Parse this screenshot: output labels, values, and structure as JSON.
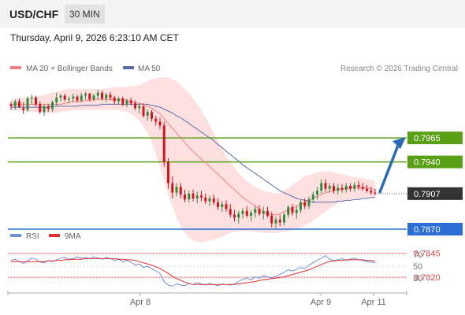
{
  "header": {
    "pair": "USD/CHF",
    "timeframe_tab": "30 MIN"
  },
  "datetime": "Thursday, April 9, 2026 6:23:10 AM CET",
  "colors": {
    "candle_up": "#2e8b3e",
    "candle_down": "#d3141d",
    "ma20": "#f08080",
    "bollinger_fill": "#ffd6d6",
    "ma50": "#5b6ba8",
    "resistance": "#5aa016",
    "support": "#2a6ed6",
    "support_secondary": "#f29a9a",
    "current_price_label": "#333333",
    "arrow": "#2a6bb3",
    "rsi": "#6f8fd8",
    "rsi_ma": "#e0302e"
  },
  "chart_data": [
    {
      "type": "candlestick",
      "title": "USD/CHF",
      "timeframe": "30 MIN",
      "legend": [
        {
          "name": "MA 20 + Bollinger Bands",
          "color": "#f08080"
        },
        {
          "name": "MA 50",
          "color": "#5b6ba8"
        }
      ],
      "legend_placement": "top-left",
      "credit": "Research © 2026 Trading Central",
      "ylim": [
        0.7797,
        0.8043
      ],
      "x_ticks": [
        "Apr 8",
        "Apr 9",
        "Apr 11"
      ],
      "current_price": 0.7907,
      "levels": [
        {
          "value": 0.7965,
          "label": "0.7965",
          "role": "resistance"
        },
        {
          "value": 0.794,
          "label": "0.7940",
          "role": "resistance"
        },
        {
          "value": 0.787,
          "label": "0.7870",
          "role": "support"
        },
        {
          "value": 0.7845,
          "label": "0.7845",
          "role": "support-secondary"
        },
        {
          "value": 0.782,
          "label": "0.7820",
          "role": "support-secondary"
        }
      ],
      "forecast_arrow": {
        "from": 0.7907,
        "to": 0.7965,
        "direction": "up"
      },
      "candles_ohlc": [
        [
          0.8,
          0.8003,
          0.7994,
          0.7998
        ],
        [
          0.7998,
          0.8005,
          0.7994,
          0.8003
        ],
        [
          0.8003,
          0.8006,
          0.7996,
          0.7997
        ],
        [
          0.7996,
          0.8002,
          0.799,
          0.7994
        ],
        [
          0.7994,
          0.8008,
          0.7992,
          0.8006
        ],
        [
          0.8006,
          0.801,
          0.8,
          0.8007
        ],
        [
          0.8007,
          0.8009,
          0.7998,
          0.8
        ],
        [
          0.8,
          0.8003,
          0.799,
          0.7992
        ],
        [
          0.7992,
          0.8,
          0.7988,
          0.7998
        ],
        [
          0.7998,
          0.8,
          0.7992,
          0.7995
        ],
        [
          0.7995,
          0.8004,
          0.7992,
          0.8002
        ],
        [
          0.8002,
          0.8012,
          0.7998,
          0.8007
        ],
        [
          0.8007,
          0.8011,
          0.8003,
          0.8009
        ],
        [
          0.8009,
          0.8011,
          0.8003,
          0.8005
        ],
        [
          0.8005,
          0.8008,
          0.8001,
          0.8006
        ],
        [
          0.8006,
          0.8011,
          0.8002,
          0.8008
        ],
        [
          0.8008,
          0.801,
          0.8002,
          0.8004
        ],
        [
          0.8004,
          0.8012,
          0.8002,
          0.8009
        ],
        [
          0.8009,
          0.8013,
          0.8005,
          0.8011
        ],
        [
          0.8011,
          0.8012,
          0.8003,
          0.8005
        ],
        [
          0.8005,
          0.8011,
          0.8003,
          0.8009
        ],
        [
          0.8009,
          0.8015,
          0.8005,
          0.8012
        ],
        [
          0.8012,
          0.8014,
          0.8004,
          0.8006
        ],
        [
          0.8006,
          0.8012,
          0.8002,
          0.801
        ],
        [
          0.801,
          0.8013,
          0.8004,
          0.8007
        ],
        [
          0.8007,
          0.8009,
          0.8,
          0.8003
        ],
        [
          0.8003,
          0.8008,
          0.8,
          0.8006
        ],
        [
          0.8006,
          0.8008,
          0.7998,
          0.8
        ],
        [
          0.8,
          0.8006,
          0.7997,
          0.8004
        ],
        [
          0.8004,
          0.8007,
          0.7999,
          0.8001
        ],
        [
          0.8001,
          0.8004,
          0.7994,
          0.7996
        ],
        [
          0.7996,
          0.8001,
          0.799,
          0.7998
        ],
        [
          0.7998,
          0.8001,
          0.7986,
          0.7988
        ],
        [
          0.7988,
          0.7995,
          0.7983,
          0.7992
        ],
        [
          0.7992,
          0.7994,
          0.7982,
          0.7985
        ],
        [
          0.7985,
          0.7988,
          0.7978,
          0.7982
        ],
        [
          0.7982,
          0.7986,
          0.7974,
          0.7978
        ],
        [
          0.7978,
          0.7982,
          0.7935,
          0.794
        ],
        [
          0.794,
          0.7944,
          0.7912,
          0.7918
        ],
        [
          0.7918,
          0.7925,
          0.7902,
          0.7908
        ],
        [
          0.7908,
          0.7918,
          0.7904,
          0.7914
        ],
        [
          0.7914,
          0.7918,
          0.7902,
          0.7906
        ],
        [
          0.7906,
          0.7911,
          0.7898,
          0.7901
        ],
        [
          0.7901,
          0.791,
          0.7898,
          0.7907
        ],
        [
          0.7907,
          0.7911,
          0.7899,
          0.7902
        ],
        [
          0.7902,
          0.7909,
          0.7897,
          0.7905
        ],
        [
          0.7905,
          0.791,
          0.7899,
          0.7903
        ],
        [
          0.7903,
          0.7907,
          0.7896,
          0.7899
        ],
        [
          0.7899,
          0.7905,
          0.7894,
          0.7902
        ],
        [
          0.7902,
          0.7906,
          0.7895,
          0.7898
        ],
        [
          0.7898,
          0.7902,
          0.789,
          0.7893
        ],
        [
          0.7893,
          0.7899,
          0.7888,
          0.7896
        ],
        [
          0.7896,
          0.79,
          0.7888,
          0.7891
        ],
        [
          0.7891,
          0.7896,
          0.7882,
          0.7885
        ],
        [
          0.7885,
          0.789,
          0.7878,
          0.7882
        ],
        [
          0.7882,
          0.7889,
          0.7876,
          0.7886
        ],
        [
          0.7886,
          0.7892,
          0.7881,
          0.7889
        ],
        [
          0.7889,
          0.7894,
          0.7882,
          0.7884
        ],
        [
          0.7884,
          0.789,
          0.7878,
          0.7887
        ],
        [
          0.7887,
          0.7894,
          0.7882,
          0.7891
        ],
        [
          0.7891,
          0.7895,
          0.7884,
          0.7886
        ],
        [
          0.7886,
          0.7893,
          0.788,
          0.7889
        ],
        [
          0.7889,
          0.7893,
          0.7882,
          0.7884
        ],
        [
          0.7884,
          0.7888,
          0.7872,
          0.7876
        ],
        [
          0.7876,
          0.7883,
          0.7871,
          0.788
        ],
        [
          0.788,
          0.7885,
          0.7873,
          0.7877
        ],
        [
          0.7877,
          0.7887,
          0.7874,
          0.7885
        ],
        [
          0.7885,
          0.7895,
          0.7882,
          0.7893
        ],
        [
          0.7893,
          0.7896,
          0.7884,
          0.7887
        ],
        [
          0.7887,
          0.7894,
          0.7881,
          0.789
        ],
        [
          0.789,
          0.79,
          0.7887,
          0.7898
        ],
        [
          0.7898,
          0.7902,
          0.7891,
          0.7894
        ],
        [
          0.7894,
          0.7904,
          0.7891,
          0.7901
        ],
        [
          0.7901,
          0.7909,
          0.7897,
          0.7906
        ],
        [
          0.7906,
          0.7914,
          0.7901,
          0.791
        ],
        [
          0.791,
          0.7922,
          0.7907,
          0.7918
        ],
        [
          0.7918,
          0.7922,
          0.7909,
          0.7912
        ],
        [
          0.7912,
          0.7918,
          0.7908,
          0.7915
        ],
        [
          0.7915,
          0.7918,
          0.7907,
          0.791
        ],
        [
          0.791,
          0.7917,
          0.7906,
          0.7913
        ],
        [
          0.7913,
          0.7917,
          0.7908,
          0.7911
        ],
        [
          0.7911,
          0.7918,
          0.7908,
          0.7915
        ],
        [
          0.7915,
          0.7918,
          0.7909,
          0.7912
        ],
        [
          0.7912,
          0.7919,
          0.7909,
          0.7916
        ],
        [
          0.7916,
          0.792,
          0.7911,
          0.7914
        ],
        [
          0.7914,
          0.7918,
          0.791,
          0.7912
        ],
        [
          0.7912,
          0.7916,
          0.7908,
          0.791
        ],
        [
          0.791,
          0.7914,
          0.7906,
          0.7908
        ],
        [
          0.7908,
          0.7912,
          0.7905,
          0.7907
        ]
      ],
      "ma20": [
        0.8,
        0.8,
        0.8,
        0.8,
        0.8,
        0.8,
        0.8,
        0.8,
        0.8,
        0.8,
        0.8,
        0.8,
        0.8,
        0.8001,
        0.8002,
        0.8003,
        0.8003,
        0.8003,
        0.8004,
        0.8004,
        0.8005,
        0.8005,
        0.8005,
        0.8005,
        0.8005,
        0.8005,
        0.8005,
        0.8005,
        0.8004,
        0.8003,
        0.8002,
        0.8001,
        0.8,
        0.7998,
        0.7996,
        0.7993,
        0.799,
        0.7985,
        0.798,
        0.7975,
        0.797,
        0.7965,
        0.796,
        0.7955,
        0.7951,
        0.7947,
        0.7943,
        0.7939,
        0.7935,
        0.7931,
        0.7927,
        0.7923,
        0.7919,
        0.7915,
        0.7911,
        0.7907,
        0.7903,
        0.79,
        0.7897,
        0.7894,
        0.7891,
        0.7888,
        0.7886,
        0.7885,
        0.7885,
        0.7886,
        0.7888,
        0.789,
        0.7892,
        0.7894,
        0.7896,
        0.7898,
        0.79,
        0.7902,
        0.7904,
        0.7906,
        0.7908,
        0.7909,
        0.791,
        0.7911,
        0.7912,
        0.7912,
        0.7913,
        0.7913,
        0.7913,
        0.7913,
        0.7913,
        0.7912,
        0.7911
      ],
      "bollinger_upper": [
        0.8006,
        0.8006,
        0.8006,
        0.8007,
        0.8007,
        0.8008,
        0.8008,
        0.8009,
        0.801,
        0.8011,
        0.8012,
        0.8013,
        0.8014,
        0.8015,
        0.8016,
        0.8016,
        0.8016,
        0.8016,
        0.8016,
        0.8016,
        0.8016,
        0.8016,
        0.8016,
        0.8017,
        0.8017,
        0.8018,
        0.8018,
        0.8018,
        0.8018,
        0.8019,
        0.8019,
        0.802,
        0.8022,
        0.8024,
        0.8026,
        0.8027,
        0.8028,
        0.8028,
        0.8028,
        0.8026,
        0.8024,
        0.802,
        0.8016,
        0.8012,
        0.8006,
        0.8,
        0.7994,
        0.7986,
        0.7978,
        0.797,
        0.7962,
        0.7954,
        0.7946,
        0.794,
        0.7934,
        0.7928,
        0.7924,
        0.792,
        0.7917,
        0.7914,
        0.7912,
        0.791,
        0.7909,
        0.7908,
        0.7907,
        0.7908,
        0.791,
        0.7913,
        0.7916,
        0.7919,
        0.7922,
        0.7925,
        0.7926,
        0.7928,
        0.7929,
        0.793,
        0.793,
        0.793,
        0.7929,
        0.7928,
        0.7927,
        0.7926,
        0.7925,
        0.7924,
        0.7924,
        0.7923,
        0.7922,
        0.7921,
        0.792
      ],
      "bollinger_lower": [
        0.7994,
        0.7994,
        0.7993,
        0.7993,
        0.7993,
        0.7992,
        0.7992,
        0.7991,
        0.7991,
        0.7991,
        0.7991,
        0.7991,
        0.7992,
        0.7993,
        0.7993,
        0.7994,
        0.7994,
        0.7994,
        0.7994,
        0.7994,
        0.7994,
        0.7994,
        0.7994,
        0.7994,
        0.7994,
        0.7994,
        0.7994,
        0.7993,
        0.7992,
        0.799,
        0.7987,
        0.7983,
        0.7977,
        0.797,
        0.796,
        0.7948,
        0.7935,
        0.792,
        0.7906,
        0.7893,
        0.7882,
        0.7873,
        0.7866,
        0.7861,
        0.7858,
        0.7857,
        0.7856,
        0.7857,
        0.7858,
        0.7859,
        0.7861,
        0.7862,
        0.7864,
        0.7866,
        0.7867,
        0.7868,
        0.7868,
        0.7868,
        0.7868,
        0.7867,
        0.7867,
        0.7866,
        0.7866,
        0.7866,
        0.7866,
        0.7867,
        0.7867,
        0.7868,
        0.7869,
        0.787,
        0.7872,
        0.7874,
        0.7876,
        0.7879,
        0.7882,
        0.7885,
        0.7888,
        0.7891,
        0.7894,
        0.7897,
        0.7899,
        0.79,
        0.7901,
        0.7902,
        0.7902,
        0.7903,
        0.7903,
        0.7903,
        0.7902
      ],
      "ma50": [
        0.7997,
        0.7997,
        0.7997,
        0.7997,
        0.7997,
        0.7997,
        0.7997,
        0.7997,
        0.7997,
        0.7997,
        0.7998,
        0.7998,
        0.7998,
        0.7998,
        0.7998,
        0.7998,
        0.7998,
        0.7999,
        0.7999,
        0.7999,
        0.7999,
        0.7999,
        0.8,
        0.8,
        0.8,
        0.8,
        0.8,
        0.8,
        0.8,
        0.8,
        0.8,
        0.8,
        0.8,
        0.8,
        0.7999,
        0.7998,
        0.7997,
        0.7995,
        0.7993,
        0.7991,
        0.7988,
        0.7986,
        0.7983,
        0.798,
        0.7977,
        0.7974,
        0.7971,
        0.7968,
        0.7965,
        0.7962,
        0.7958,
        0.7955,
        0.7951,
        0.7948,
        0.7944,
        0.7941,
        0.7937,
        0.7934,
        0.7931,
        0.7928,
        0.7925,
        0.7922,
        0.7919,
        0.7916,
        0.7913,
        0.791,
        0.7908,
        0.7906,
        0.7904,
        0.7902,
        0.7901,
        0.79,
        0.7899,
        0.7898,
        0.7898,
        0.7898,
        0.7898,
        0.7898,
        0.7898,
        0.7899,
        0.7899,
        0.79,
        0.79,
        0.7901,
        0.7901,
        0.7902,
        0.7902,
        0.7903,
        0.7903
      ]
    },
    {
      "type": "line",
      "title": "RSI",
      "legend": [
        {
          "name": "RSI",
          "color": "#6f8fd8"
        },
        {
          "name": "9MA",
          "color": "#e0302e"
        }
      ],
      "legend_placement": "top-left",
      "ylim": [
        10,
        85
      ],
      "y_ticks": [
        70,
        50,
        30
      ],
      "reference_lines": [
        70,
        50,
        30
      ],
      "rsi": [
        60,
        62,
        58,
        55,
        59,
        64,
        62,
        57,
        56,
        60,
        58,
        61,
        64,
        65,
        62,
        63,
        66,
        64,
        65,
        63,
        66,
        64,
        62,
        65,
        63,
        60,
        62,
        58,
        60,
        57,
        52,
        54,
        48,
        50,
        46,
        42,
        38,
        24,
        18,
        16,
        20,
        18,
        17,
        21,
        19,
        22,
        20,
        18,
        21,
        19,
        17,
        20,
        19,
        18,
        20,
        24,
        28,
        30,
        27,
        32,
        30,
        34,
        32,
        30,
        33,
        36,
        40,
        44,
        42,
        45,
        48,
        46,
        52,
        56,
        60,
        64,
        68,
        62,
        60,
        61,
        63,
        60,
        62,
        64,
        61,
        60,
        58,
        57,
        56
      ],
      "ma9": [
        58,
        58,
        58,
        58,
        58,
        58,
        58,
        58,
        58,
        59,
        59,
        60,
        60,
        61,
        61,
        62,
        62,
        62,
        63,
        63,
        63,
        63,
        63,
        63,
        63,
        63,
        62,
        62,
        61,
        61,
        60,
        58,
        56,
        54,
        52,
        49,
        46,
        42,
        38,
        33,
        29,
        26,
        23,
        21,
        19,
        19,
        19,
        19,
        19,
        19,
        19,
        19,
        19,
        19,
        19,
        20,
        21,
        22,
        23,
        24,
        26,
        27,
        28,
        29,
        30,
        31,
        32,
        34,
        36,
        38,
        40,
        42,
        44,
        47,
        50,
        53,
        56,
        58,
        59,
        60,
        60,
        61,
        61,
        61,
        61,
        61,
        60,
        60,
        59
      ]
    }
  ]
}
